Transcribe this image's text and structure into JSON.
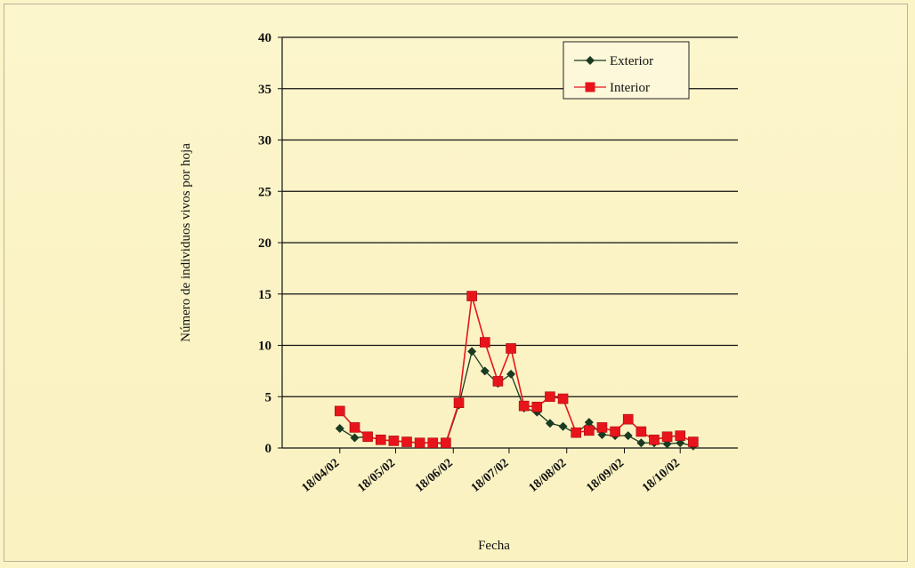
{
  "chart_data": {
    "type": "line",
    "title": "",
    "xlabel": "Fecha",
    "ylabel": "Número de individuos vivos por hoja",
    "ylim": [
      0,
      40
    ],
    "yticks": [
      0,
      5,
      10,
      15,
      20,
      25,
      30,
      35,
      40
    ],
    "xlim": [
      "2002-03-18",
      "2002-11-18"
    ],
    "xticks": [
      "2002-04-18",
      "2002-05-18",
      "2002-06-18",
      "2002-07-18",
      "2002-08-18",
      "2002-09-18",
      "2002-10-18"
    ],
    "xtick_labels": [
      "18/04/02",
      "18/05/02",
      "18/06/02",
      "18/07/02",
      "18/08/02",
      "18/09/02",
      "18/10/02"
    ],
    "grid": "horizontal",
    "legend_position": "top-right",
    "series": [
      {
        "name": "Exterior",
        "color": "#1a3a22",
        "marker": "diamond",
        "points": [
          [
            "2002-04-18",
            1.9
          ],
          [
            "2002-04-26",
            1.0
          ],
          [
            "2002-05-03",
            1.1
          ],
          [
            "2002-05-10",
            0.8
          ],
          [
            "2002-05-17",
            0.7
          ],
          [
            "2002-05-24",
            0.6
          ],
          [
            "2002-05-31",
            0.5
          ],
          [
            "2002-06-07",
            0.5
          ],
          [
            "2002-06-14",
            0.4
          ],
          [
            "2002-06-21",
            4.2
          ],
          [
            "2002-06-28",
            9.4
          ],
          [
            "2002-07-05",
            7.5
          ],
          [
            "2002-07-12",
            6.3
          ],
          [
            "2002-07-19",
            7.2
          ],
          [
            "2002-07-26",
            3.9
          ],
          [
            "2002-08-02",
            3.5
          ],
          [
            "2002-08-09",
            2.4
          ],
          [
            "2002-08-16",
            2.1
          ],
          [
            "2002-08-23",
            1.4
          ],
          [
            "2002-08-30",
            2.5
          ],
          [
            "2002-09-06",
            1.3
          ],
          [
            "2002-09-13",
            1.2
          ],
          [
            "2002-09-20",
            1.2
          ],
          [
            "2002-09-27",
            0.5
          ],
          [
            "2002-10-04",
            0.5
          ],
          [
            "2002-10-11",
            0.4
          ],
          [
            "2002-10-18",
            0.5
          ],
          [
            "2002-10-25",
            0.2
          ]
        ]
      },
      {
        "name": "Interior",
        "color": "#e8141b",
        "marker": "square",
        "points": [
          [
            "2002-04-18",
            3.6
          ],
          [
            "2002-04-26",
            2.0
          ],
          [
            "2002-05-03",
            1.1
          ],
          [
            "2002-05-10",
            0.8
          ],
          [
            "2002-05-17",
            0.7
          ],
          [
            "2002-05-24",
            0.6
          ],
          [
            "2002-05-31",
            0.5
          ],
          [
            "2002-06-07",
            0.5
          ],
          [
            "2002-06-14",
            0.5
          ],
          [
            "2002-06-21",
            4.4
          ],
          [
            "2002-06-28",
            14.8
          ],
          [
            "2002-07-05",
            10.3
          ],
          [
            "2002-07-12",
            6.5
          ],
          [
            "2002-07-19",
            9.7
          ],
          [
            "2002-07-26",
            4.1
          ],
          [
            "2002-08-02",
            4.0
          ],
          [
            "2002-08-09",
            5.0
          ],
          [
            "2002-08-16",
            4.8
          ],
          [
            "2002-08-23",
            1.5
          ],
          [
            "2002-08-30",
            1.7
          ],
          [
            "2002-09-06",
            2.0
          ],
          [
            "2002-09-13",
            1.6
          ],
          [
            "2002-09-20",
            2.8
          ],
          [
            "2002-09-27",
            1.6
          ],
          [
            "2002-10-04",
            0.8
          ],
          [
            "2002-10-11",
            1.1
          ],
          [
            "2002-10-18",
            1.2
          ],
          [
            "2002-10-25",
            0.6
          ]
        ]
      }
    ]
  }
}
